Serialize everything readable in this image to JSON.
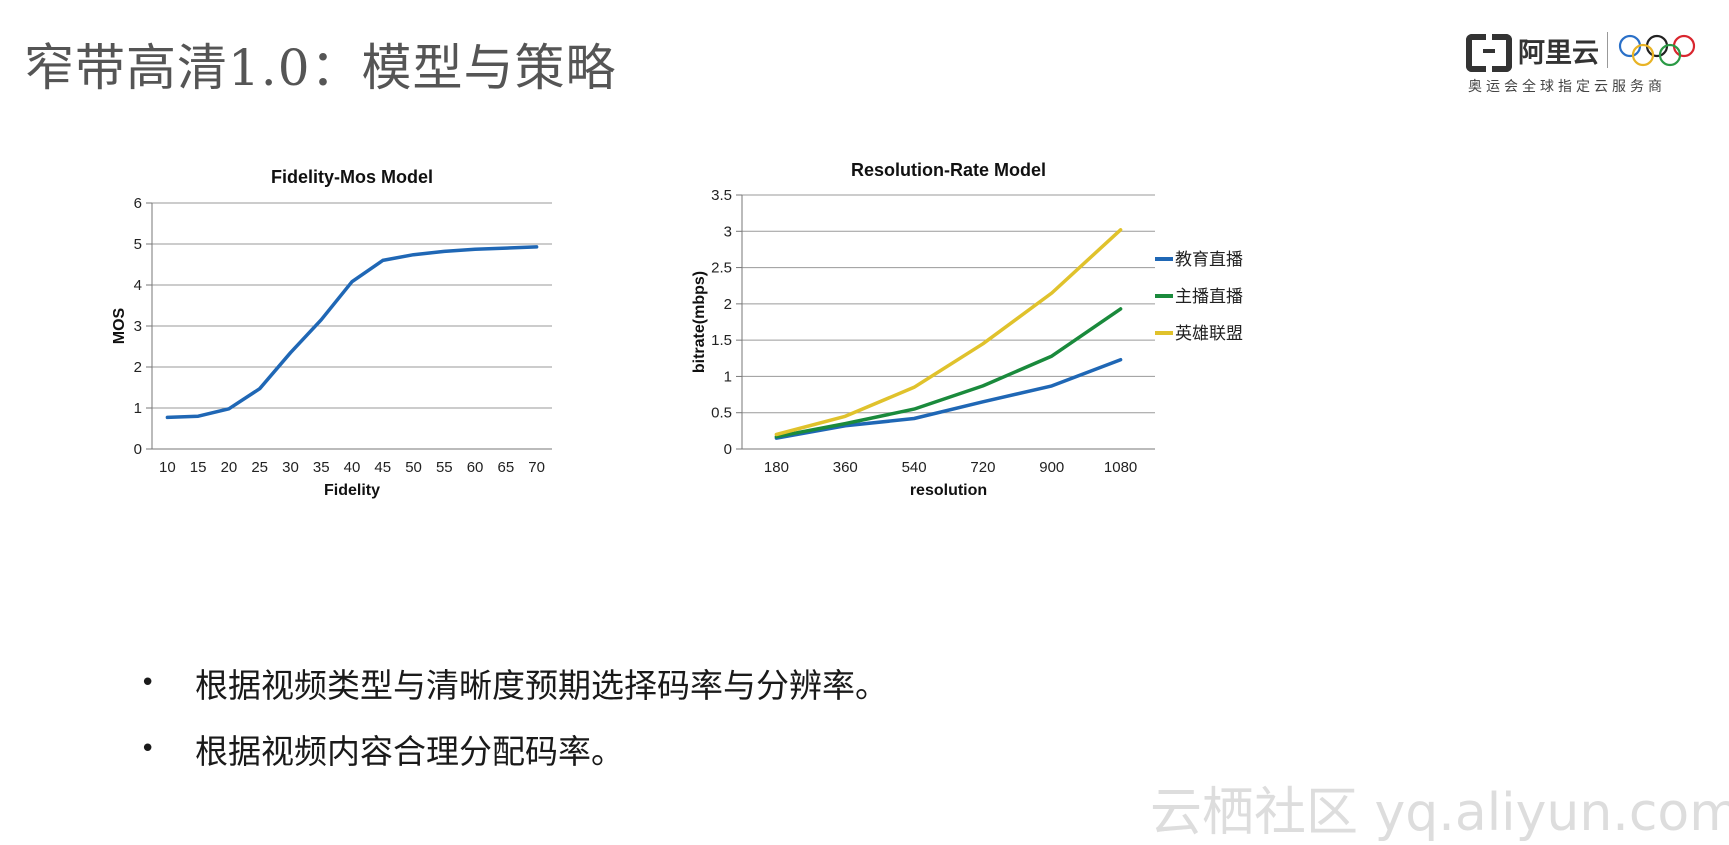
{
  "slide": {
    "title": "窄带高清1.0：模型与策略",
    "logo": {
      "brand": "阿里云",
      "tagline": "奥运会全球指定云服务商"
    },
    "bullets": [
      "根据视频类型与清晰度预期选择码率与分辨率。",
      "根据视频内容合理分配码率。"
    ],
    "watermark": "云栖社区 yq.aliyun.com"
  },
  "chart_data": [
    {
      "type": "line",
      "title": "Fidelity-Mos Model",
      "xlabel": "Fidelity",
      "ylabel": "MOS",
      "x": [
        10,
        15,
        20,
        25,
        30,
        35,
        40,
        45,
        50,
        55,
        60,
        65,
        70
      ],
      "ylim": [
        0,
        6
      ],
      "yticks": [
        "0",
        "1",
        "2",
        "3",
        "4",
        "5",
        "6"
      ],
      "grid": true,
      "series": [
        {
          "name": "MOS",
          "color": "#1f67b5",
          "values": [
            0.77,
            0.8,
            0.98,
            1.47,
            2.35,
            3.15,
            4.08,
            4.6,
            4.74,
            4.82,
            4.87,
            4.9,
            4.93
          ]
        }
      ]
    },
    {
      "type": "line",
      "title": "Resolution-Rate Model",
      "xlabel": "resolution",
      "ylabel": "bitrate(mbps)",
      "categories": [
        "180",
        "360",
        "540",
        "720",
        "900",
        "1080"
      ],
      "ylim": [
        0,
        3.5
      ],
      "yticks": [
        "0",
        "0.5",
        "1",
        "1.5",
        "2",
        "2.5",
        "3",
        "3.5"
      ],
      "grid": true,
      "legend": "right",
      "series": [
        {
          "name": "教育直播",
          "color": "#1f67b5",
          "values": [
            0.15,
            0.32,
            0.42,
            0.65,
            0.87,
            1.23
          ]
        },
        {
          "name": "主播直播",
          "color": "#1a8a3c",
          "values": [
            0.17,
            0.35,
            0.55,
            0.87,
            1.28,
            1.93
          ]
        },
        {
          "name": "英雄联盟",
          "color": "#e0c22c",
          "values": [
            0.2,
            0.45,
            0.85,
            1.45,
            2.15,
            3.02
          ]
        }
      ]
    }
  ]
}
